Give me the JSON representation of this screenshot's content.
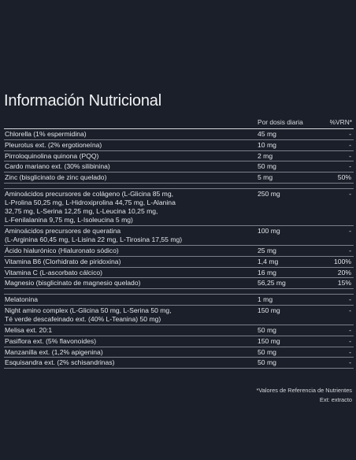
{
  "title": "Información Nutricional",
  "header": {
    "amount": "Por dosis diaria",
    "vrn": "%VRN*"
  },
  "groups": [
    [
      {
        "name": "Chlorella (1% espermidina)",
        "amount": "45 mg",
        "vrn": "-"
      },
      {
        "name": "Pleurotus ext. (2% ergotioneína)",
        "amount": "10 mg",
        "vrn": "-"
      },
      {
        "name": "Pirroloquinolina quinona (PQQ)",
        "amount": "2 mg",
        "vrn": "-"
      },
      {
        "name": "Cardo mariano ext. (30% silibinina)",
        "amount": "50 mg",
        "vrn": "-"
      },
      {
        "name": "Zinc (bisglicinato de zinc quelado)",
        "amount": "5 mg",
        "vrn": "50%"
      }
    ],
    [
      {
        "name": "Aminoácidos precursores de colágeno (L-Glicina 85 mg,\nL-Prolina 50,25 mg, L-Hidroxiprolina 44,75 mg, L-Alanina\n32,75 mg, L-Serina 12,25 mg, L-Leucina 10,25 mg,\nL-Fenilalanina 9,75 mg, L-Isoleucina 5 mg)",
        "amount": "250 mg",
        "vrn": "-"
      },
      {
        "name": "Aminoácidos precursores de queratina\n(L-Arginina 60,45 mg, L-Lisina 22 mg, L-Tirosina 17,55 mg)",
        "amount": "100 mg",
        "vrn": "-"
      },
      {
        "name": "Ácido hialurónico (Hialuronato sódico)",
        "amount": "25 mg",
        "vrn": "-"
      },
      {
        "name": "Vitamina B6 (Clorhidrato de piridoxina)",
        "amount": "1,4 mg",
        "vrn": "100%"
      },
      {
        "name": "Vitamina C (L-ascorbato cálcico)",
        "amount": "16 mg",
        "vrn": "20%"
      },
      {
        "name": "Magnesio (bisglicinato de magnesio quelado)",
        "amount": "56,25 mg",
        "vrn": "15%"
      }
    ],
    [
      {
        "name": "Melatonina",
        "amount": "1 mg",
        "vrn": "-"
      },
      {
        "name": "Night amino complex (L-Glicina 50 mg, L-Serina 50 mg,\nTé verde descafeinado ext. (40% L-Teanina) 50 mg)",
        "amount": "150 mg",
        "vrn": "-"
      },
      {
        "name": "Melisa ext. 20:1",
        "amount": "50 mg",
        "vrn": "-"
      },
      {
        "name": "Pasiflora ext. (5% flavonoides)",
        "amount": "150 mg",
        "vrn": "-"
      },
      {
        "name": "Manzanilla ext. (1,2% apigenina)",
        "amount": "50 mg",
        "vrn": "-"
      },
      {
        "name": "Esquisandra ext. (2% schisandrinas)",
        "amount": "50 mg",
        "vrn": "-"
      }
    ]
  ],
  "footnotes": {
    "line1": "*Valores de Referencia de Nutrientes",
    "line2": "Ext: extracto"
  }
}
